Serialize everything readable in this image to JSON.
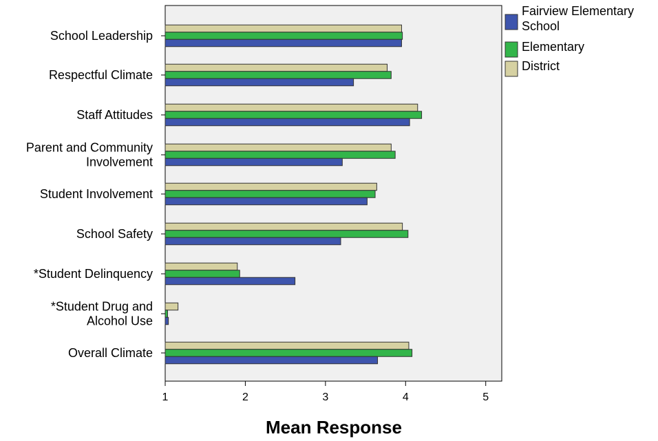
{
  "chart_data": {
    "type": "bar",
    "orientation": "horizontal",
    "categories": [
      "School Leadership",
      "Respectful Climate",
      "Staff Attitudes",
      "Parent and Community Involvement",
      "Student Involvement",
      "School Safety",
      "*Student Delinquency",
      "*Student Drug and Alcohol Use",
      "Overall Climate"
    ],
    "category_label_lines": [
      [
        "School Leadership"
      ],
      [
        "Respectful Climate"
      ],
      [
        "Staff Attitudes"
      ],
      [
        "Parent and Community",
        "Involvement"
      ],
      [
        "Student Involvement"
      ],
      [
        "School Safety"
      ],
      [
        "*Student Delinquency"
      ],
      [
        "*Student Drug and",
        "Alcohol Use"
      ],
      [
        "Overall Climate"
      ]
    ],
    "series": [
      {
        "name": "District",
        "color": "#d6d1a2",
        "values": [
          3.95,
          3.77,
          4.15,
          3.82,
          3.64,
          3.96,
          1.9,
          1.16,
          4.04
        ]
      },
      {
        "name": "Elementary",
        "color": "#33b54a",
        "values": [
          3.96,
          3.82,
          4.2,
          3.87,
          3.62,
          4.03,
          1.93,
          1.03,
          4.08
        ]
      },
      {
        "name": "Fairview Elementary School",
        "color": "#3e55ad",
        "values": [
          3.95,
          3.35,
          4.05,
          3.21,
          3.52,
          3.19,
          2.62,
          1.04,
          3.65
        ]
      }
    ],
    "legend_order": [
      {
        "series": 2,
        "lines": [
          "Fairview Elementary",
          "School"
        ]
      },
      {
        "series": 1,
        "lines": [
          "Elementary"
        ]
      },
      {
        "series": 0,
        "lines": [
          "District"
        ]
      }
    ],
    "xlabel": "Mean Response",
    "xlim": [
      1,
      5.2
    ],
    "xticks": [
      1,
      2,
      3,
      4,
      5
    ],
    "legend_position": "top-right",
    "plot_background": "#f0f0f0",
    "grid": false
  }
}
